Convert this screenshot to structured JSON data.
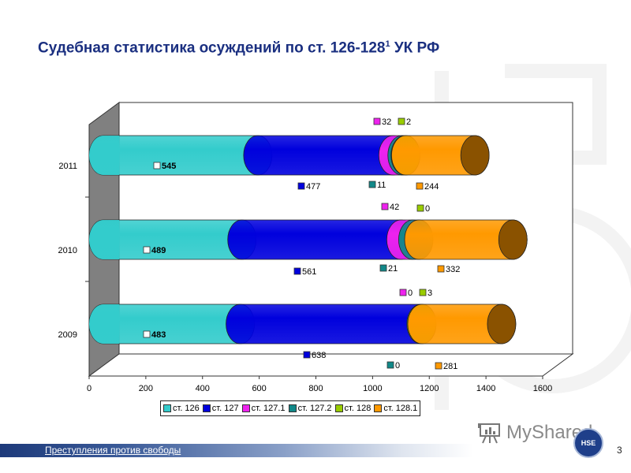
{
  "slide": {
    "title_main": "Судебная статистика осуждений по ст. 126-128",
    "title_sup": "1",
    "title_tail": " УК РФ",
    "footer_text": "Преступления против свободы",
    "page_number": "3",
    "watermark_brand": "MyShared",
    "logo_label": "HSE"
  },
  "colors": {
    "title": "#1a2f80",
    "st126": "#33cccc",
    "st127": "#0000dd",
    "st127_1": "#ee22ee",
    "st127_2": "#118888",
    "st128": "#99cc00",
    "st128_1": "#ff9900",
    "wall": "#808080"
  },
  "chart_data": {
    "type": "bar",
    "orientation": "horizontal",
    "stacked": true,
    "style": "3d-cylinder",
    "title": "Судебная статистика осуждений по ст. 126-128¹ УК РФ",
    "categories": [
      "2009",
      "2010",
      "2011"
    ],
    "series": [
      {
        "name": "ст. 126",
        "values": [
          483,
          489,
          545
        ],
        "color": "#33cccc"
      },
      {
        "name": "ст. 127",
        "values": [
          638,
          561,
          477
        ],
        "color": "#0000dd"
      },
      {
        "name": "ст. 127.1",
        "values": [
          0,
          42,
          32
        ],
        "color": "#ee22ee"
      },
      {
        "name": "ст. 127.2",
        "values": [
          0,
          21,
          11
        ],
        "color": "#118888"
      },
      {
        "name": "ст. 128",
        "values": [
          3,
          0,
          2
        ],
        "color": "#99cc00"
      },
      {
        "name": "ст. 128.1",
        "values": [
          281,
          332,
          244
        ],
        "color": "#ff9900"
      }
    ],
    "xlabel": "",
    "ylabel": "",
    "xlim": [
      0,
      1600
    ],
    "x_ticks": [
      "0",
      "200",
      "400",
      "600",
      "800",
      "1000",
      "1200",
      "1400",
      "1600"
    ],
    "grid": false,
    "legend_position": "bottom",
    "data_labels": true
  }
}
